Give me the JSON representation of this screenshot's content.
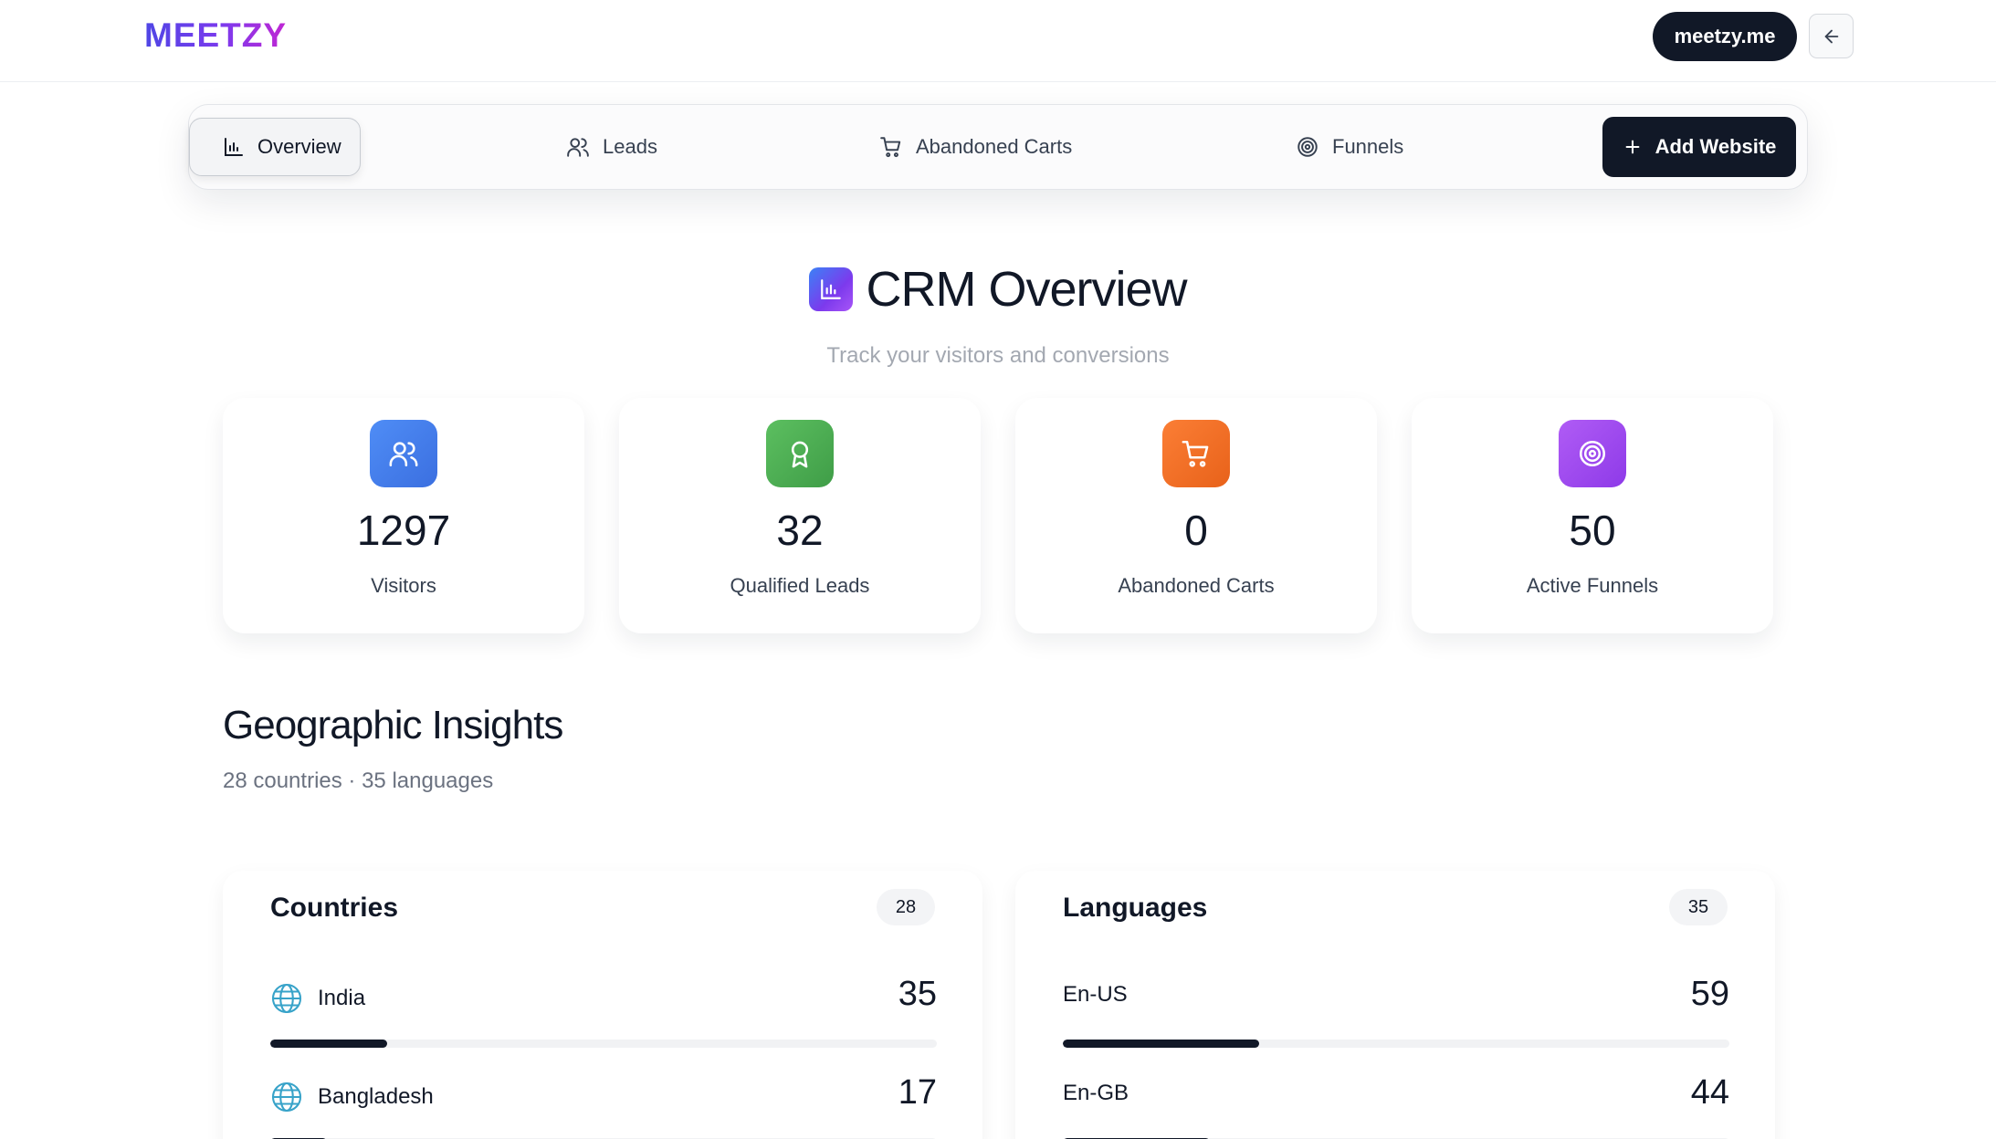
{
  "header": {
    "logo": "MEETZY",
    "site_button": "meetzy.me"
  },
  "nav": {
    "items": [
      {
        "label": "Overview",
        "icon": "bar-chart-icon",
        "active": true
      },
      {
        "label": "Leads",
        "icon": "users-icon",
        "active": false
      },
      {
        "label": "Abandoned Carts",
        "icon": "cart-icon",
        "active": false
      },
      {
        "label": "Funnels",
        "icon": "target-icon",
        "active": false
      }
    ],
    "add_button": "Add Website"
  },
  "hero": {
    "title": "CRM Overview",
    "subtitle": "Track your visitors and conversions"
  },
  "stats": [
    {
      "value": "1297",
      "label": "Visitors",
      "color": "#3b82f6",
      "icon": "users-icon"
    },
    {
      "value": "32",
      "label": "Qualified Leads",
      "color": "#4caf50",
      "icon": "award-icon"
    },
    {
      "value": "0",
      "label": "Abandoned Carts",
      "color": "#f97316",
      "icon": "cart-icon"
    },
    {
      "value": "50",
      "label": "Active Funnels",
      "color": "#a855f7",
      "icon": "target-icon"
    }
  ],
  "geo": {
    "title": "Geographic Insights",
    "subtitle": "28 countries · 35 languages"
  },
  "countries": {
    "title": "Countries",
    "count": "28",
    "rows": [
      {
        "name": "India",
        "value": "35",
        "fill": 0.175
      },
      {
        "name": "Bangladesh",
        "value": "17",
        "fill": 0.085
      }
    ]
  },
  "languages": {
    "title": "Languages",
    "count": "35",
    "rows": [
      {
        "name": "En-US",
        "value": "59",
        "fill": 0.295
      },
      {
        "name": "En-GB",
        "value": "44",
        "fill": 0.22
      }
    ]
  },
  "colors": {
    "dark": "#111827",
    "accent_gradient_start": "#4f46e5",
    "accent_gradient_end": "#c026d3"
  }
}
